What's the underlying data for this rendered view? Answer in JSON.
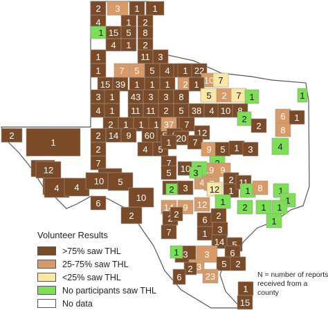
{
  "legend": {
    "title": "Volunteer Results",
    "items": [
      {
        "label": ">75% saw THL",
        "color": "#7b4a27"
      },
      {
        "label": "25-75% saw THL",
        "color": "#d99a65"
      },
      {
        "label": "<25% saw THL",
        "color": "#fbe7a4"
      },
      {
        "label": "No participants saw THL",
        "color": "#7be053"
      },
      {
        "label": "No data",
        "color": "#ffffff"
      }
    ]
  },
  "note": "N = number of reports received from a county",
  "colors": {
    "border": "#555555",
    "background": "#ffffff",
    "text_light": "#ffffff",
    "text_dark": "#1a1a1a"
  },
  "counties": [
    {
      "n": "2",
      "c": ">75%"
    },
    {
      "n": "3",
      "c": "25-75%"
    },
    {
      "n": "1",
      "c": ">75%"
    },
    {
      "n": "1",
      "c": ">75%"
    },
    {
      "n": "4",
      "c": ">75%"
    },
    {
      "n": "1",
      "c": ">75%"
    },
    {
      "n": "2",
      "c": ">75%"
    },
    {
      "n": "1",
      "c": "none"
    },
    {
      "n": "15",
      "c": ">75%"
    },
    {
      "n": "5",
      "c": ">75%"
    },
    {
      "n": "8",
      "c": ">75%"
    },
    {
      "n": "4",
      "c": ">75%"
    },
    {
      "n": "1",
      "c": ">75%"
    },
    {
      "n": "2",
      "c": ">75%"
    },
    {
      "n": "1",
      "c": ">75%"
    },
    {
      "n": "11",
      "c": ">75%"
    },
    {
      "n": "3",
      "c": ">75%"
    },
    {
      "n": "1",
      "c": ">75%"
    },
    {
      "n": "7",
      "c": "25-75%"
    },
    {
      "n": "5",
      "c": "25-75%"
    },
    {
      "n": "5",
      "c": ">75%"
    },
    {
      "n": "4",
      "c": ">75%"
    },
    {
      "n": "3",
      "c": ">75%"
    },
    {
      "n": "1",
      "c": ">75%"
    },
    {
      "n": "22",
      "c": ">75%"
    },
    {
      "n": "15",
      "c": ">75%"
    },
    {
      "n": "39",
      "c": ">75%"
    },
    {
      "n": "1",
      "c": ">75%"
    },
    {
      "n": "1",
      "c": ">75%"
    },
    {
      "n": "10",
      "c": "25-75%"
    },
    {
      "n": "7",
      "c": "<25%"
    },
    {
      "n": "2",
      "c": "25-75%"
    },
    {
      "n": "1",
      "c": ">75%"
    },
    {
      "n": "1",
      "c": ">75%"
    },
    {
      "n": "3",
      "c": ">75%"
    },
    {
      "n": "1",
      "c": ">75%"
    },
    {
      "n": "43",
      "c": ">75%"
    },
    {
      "n": "3",
      "c": ">75%"
    },
    {
      "n": "3",
      "c": ">75%"
    },
    {
      "n": "8",
      "c": ">75%"
    },
    {
      "n": "5",
      "c": "<25%"
    },
    {
      "n": "2",
      "c": "25-75%"
    },
    {
      "n": "7",
      "c": "<25%"
    },
    {
      "n": "1",
      "c": "none"
    },
    {
      "n": "1",
      "c": "none"
    },
    {
      "n": "4",
      "c": ">75%"
    },
    {
      "n": "1",
      "c": ">75%"
    },
    {
      "n": "11",
      "c": ">75%"
    },
    {
      "n": "11",
      "c": ">75%"
    },
    {
      "n": "2",
      "c": ">75%"
    },
    {
      "n": "5",
      "c": ">75%"
    },
    {
      "n": "38",
      "c": ">75%"
    },
    {
      "n": "4",
      "c": ">75%"
    },
    {
      "n": "10",
      "c": ">75%"
    },
    {
      "n": "8",
      "c": ">75%"
    },
    {
      "n": "6",
      "c": "25-75%"
    },
    {
      "n": "2",
      "c": ">75%"
    },
    {
      "n": "1",
      "c": ">75%"
    },
    {
      "n": "1",
      "c": ">75%"
    },
    {
      "n": "1",
      "c": ">75%"
    },
    {
      "n": "2",
      "c": ">75%"
    },
    {
      "n": "7",
      "c": ">75%"
    },
    {
      "n": "2",
      "c": "none"
    },
    {
      "n": "2",
      "c": ">75%"
    },
    {
      "n": "8",
      "c": "25-75%"
    },
    {
      "n": "1",
      "c": ">75%"
    },
    {
      "n": "2",
      "c": ">75%"
    },
    {
      "n": "14",
      "c": ">75%"
    },
    {
      "n": "9",
      "c": ">75%"
    },
    {
      "n": "60",
      "c": ">75%"
    },
    {
      "n": "5",
      "c": ">75%"
    },
    {
      "n": "37",
      "c": "25-75%"
    },
    {
      "n": "12",
      "c": ">75%"
    },
    {
      "n": "4",
      "c": "none"
    },
    {
      "n": "1",
      "c": ">75%"
    },
    {
      "n": "4",
      "c": ">75%"
    },
    {
      "n": "5",
      "c": ">75%"
    },
    {
      "n": "2",
      "c": ">75%"
    },
    {
      "n": "20",
      "c": ">75%"
    },
    {
      "n": "7",
      "c": ">75%"
    },
    {
      "n": "2",
      "c": ">75%"
    },
    {
      "n": "7",
      "c": ">75%"
    },
    {
      "n": "9",
      "c": "25-75%"
    },
    {
      "n": "5",
      "c": ">75%"
    },
    {
      "n": "1",
      "c": ">75%"
    },
    {
      "n": "3",
      "c": ">75%"
    },
    {
      "n": "12",
      "c": ">75%"
    },
    {
      "n": "7",
      "c": ">75%"
    },
    {
      "n": "2",
      "c": "none"
    },
    {
      "n": "19",
      "c": "25-75%"
    },
    {
      "n": "9",
      "c": "25-75%"
    },
    {
      "n": "2",
      "c": ">75%"
    },
    {
      "n": "4",
      "c": ">75%"
    },
    {
      "n": "5",
      "c": ">75%"
    },
    {
      "n": "10",
      "c": ">75%"
    },
    {
      "n": "5",
      "c": "none"
    },
    {
      "n": "4",
      "c": "25-75%"
    },
    {
      "n": "7",
      "c": "25-75%"
    },
    {
      "n": "12",
      "c": "<25%"
    },
    {
      "n": "1",
      "c": ">75%"
    },
    {
      "n": "11",
      "c": ">75%"
    },
    {
      "n": "1",
      "c": "none"
    },
    {
      "n": "1",
      "c": "none"
    },
    {
      "n": "2",
      "c": ">75%"
    },
    {
      "n": "1",
      "c": "none"
    },
    {
      "n": "3",
      "c": ">75%"
    },
    {
      "n": "3",
      "c": ">75%"
    },
    {
      "n": "8",
      "c": "25-75%"
    },
    {
      "n": "1",
      "c": "none"
    },
    {
      "n": "6",
      "c": ">75%"
    },
    {
      "n": "14",
      "c": "25-75%"
    },
    {
      "n": "9",
      "c": "25-75%"
    },
    {
      "n": "12",
      "c": "25-75%"
    },
    {
      "n": "1",
      "c": "none"
    },
    {
      "n": "2",
      "c": "none"
    },
    {
      "n": "1",
      "c": "none"
    },
    {
      "n": "1",
      "c": "none"
    },
    {
      "n": "2",
      "c": ">75%"
    },
    {
      "n": "6",
      "c": ">75%"
    },
    {
      "n": "2",
      "c": ">75%"
    },
    {
      "n": "2",
      "c": ">75%"
    },
    {
      "n": "1",
      "c": "none"
    },
    {
      "n": "7",
      "c": ">75%"
    },
    {
      "n": "1",
      "c": ">75%"
    },
    {
      "n": "3",
      "c": ">75%"
    },
    {
      "n": "14",
      "c": ">75%"
    },
    {
      "n": "5",
      "c": ">75%"
    },
    {
      "n": "3",
      "c": ">75%"
    },
    {
      "n": "3",
      "c": "25-75%"
    },
    {
      "n": "6",
      "c": ">75%"
    },
    {
      "n": "5",
      "c": ">75%"
    },
    {
      "n": "2",
      "c": ">75%"
    },
    {
      "n": "13",
      "c": "25-75%"
    },
    {
      "n": "23",
      "c": "25-75%"
    },
    {
      "n": "1",
      "c": ">75%"
    },
    {
      "n": "15",
      "c": ">75%"
    },
    {
      "n": "2",
      "c": ">75%"
    },
    {
      "n": "1",
      "c": ">75%"
    },
    {
      "n": "12",
      "c": ">75%"
    },
    {
      "n": "4",
      "c": ">75%"
    },
    {
      "n": "4",
      "c": ">75%"
    },
    {
      "n": "10",
      "c": ">75%"
    },
    {
      "n": "5",
      "c": ">75%"
    },
    {
      "n": "10",
      "c": ">75%"
    },
    {
      "n": "2",
      "c": "none"
    },
    {
      "n": "3",
      "c": "none"
    },
    {
      "n": "1",
      "c": "none"
    },
    {
      "n": "2",
      "c": ">75%"
    },
    {
      "n": "2",
      "c": ">75%"
    },
    {
      "n": "6",
      "c": ">75%"
    }
  ]
}
